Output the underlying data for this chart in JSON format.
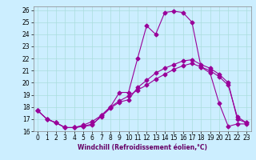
{
  "xlabel": "Windchill (Refroidissement éolien,°C)",
  "background_color": "#cceeff",
  "line_color": "#990099",
  "xlim": [
    -0.5,
    23.5
  ],
  "ylim": [
    16,
    26.3
  ],
  "x_ticks": [
    0,
    1,
    2,
    3,
    4,
    5,
    6,
    7,
    8,
    9,
    10,
    11,
    12,
    13,
    14,
    15,
    16,
    17,
    18,
    19,
    20,
    21,
    22,
    23
  ],
  "y_ticks": [
    16,
    17,
    18,
    19,
    20,
    21,
    22,
    23,
    24,
    25,
    26
  ],
  "series1_x": [
    0,
    1,
    2,
    3,
    4,
    5,
    6,
    7,
    8,
    9,
    10,
    11,
    12,
    13,
    14,
    15,
    16,
    17,
    18,
    19,
    20,
    21,
    22,
    23
  ],
  "series1_y": [
    17.7,
    17.0,
    16.7,
    16.3,
    16.3,
    16.4,
    16.5,
    17.3,
    18.0,
    19.2,
    19.2,
    22.0,
    24.7,
    24.0,
    25.8,
    25.9,
    25.8,
    25.0,
    21.3,
    20.8,
    18.3,
    16.4,
    16.6,
    16.6
  ],
  "series2_x": [
    0,
    1,
    2,
    3,
    4,
    5,
    6,
    7,
    8,
    9,
    10,
    11,
    12,
    13,
    14,
    15,
    16,
    17,
    18,
    19,
    20,
    21,
    22,
    23
  ],
  "series2_y": [
    17.7,
    17.0,
    16.7,
    16.3,
    16.3,
    16.4,
    16.6,
    17.2,
    17.9,
    18.4,
    18.6,
    19.6,
    20.2,
    20.8,
    21.2,
    21.5,
    21.8,
    21.9,
    21.5,
    21.2,
    20.7,
    20.0,
    17.0,
    16.7
  ],
  "series3_x": [
    0,
    1,
    2,
    3,
    4,
    5,
    6,
    7,
    8,
    9,
    10,
    11,
    12,
    13,
    14,
    15,
    16,
    17,
    18,
    19,
    20,
    21,
    22,
    23
  ],
  "series3_y": [
    17.7,
    17.0,
    16.7,
    16.3,
    16.3,
    16.5,
    16.8,
    17.3,
    18.0,
    18.5,
    18.9,
    19.4,
    19.8,
    20.3,
    20.7,
    21.1,
    21.4,
    21.6,
    21.3,
    21.0,
    20.5,
    19.8,
    17.2,
    16.7
  ],
  "tick_fontsize": 5.5,
  "xlabel_fontsize": 5.5,
  "grid_color": "#aadddd",
  "marker_size": 2.5
}
